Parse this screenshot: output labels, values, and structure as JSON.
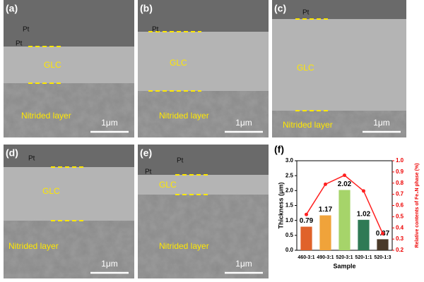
{
  "panels": [
    {
      "label": "(a)",
      "texts": [
        "Pt",
        "Pt",
        "GLC",
        "Nitrided layer"
      ],
      "scale": "1μm"
    },
    {
      "label": "(b)",
      "texts": [
        "Pt",
        "GLC",
        "Nitrided layer"
      ],
      "scale": "1μm"
    },
    {
      "label": "(c)",
      "texts": [
        "Pt",
        "GLC",
        "Nitrided layer"
      ],
      "scale": "1μm"
    },
    {
      "label": "(d)",
      "texts": [
        "Pt",
        "GLC",
        "Nitrided layer"
      ],
      "scale": "1μm"
    },
    {
      "label": "(e)",
      "texts": [
        "Pt",
        "Pt",
        "GLC",
        "Nitrided layer"
      ],
      "scale": "1μm"
    }
  ],
  "chart_data": {
    "type": "bar",
    "panel_label": "(f)",
    "categories": [
      "460-3:1",
      "490-3:1",
      "520-3:1",
      "520-1:1",
      "520-1:3"
    ],
    "series": [
      {
        "name": "Thickness",
        "type": "bar",
        "values": [
          0.79,
          1.17,
          2.02,
          1.02,
          0.37
        ],
        "colors": [
          "#e0622a",
          "#f0a33a",
          "#a6d46a",
          "#2f7a55",
          "#4a3a2a"
        ]
      },
      {
        "name": "Fe4N",
        "type": "line",
        "axis": "y2",
        "color": "#ff2020",
        "values": [
          0.52,
          0.79,
          0.87,
          0.73,
          0.35
        ]
      }
    ],
    "ylabel": "Thickness (μm)",
    "y2label": "Relative contents of Fe₄N phase (%)",
    "xlabel": "Sample",
    "ylim": [
      0,
      3
    ],
    "yticks": [
      {
        "value": 0,
        "label": "0.0"
      },
      0.5,
      {
        "value": 1,
        "label": "1.0"
      },
      1.5,
      {
        "value": 2,
        "label": "2.0"
      },
      2.5,
      {
        "value": 3,
        "label": "3.0"
      }
    ],
    "y2lim": [
      0.2,
      1
    ],
    "y2ticks": [
      0.2,
      0.3,
      0.4,
      0.5,
      0.6,
      0.7,
      0.8,
      0.9,
      {
        "value": 1,
        "label": "1.0"
      }
    ]
  }
}
